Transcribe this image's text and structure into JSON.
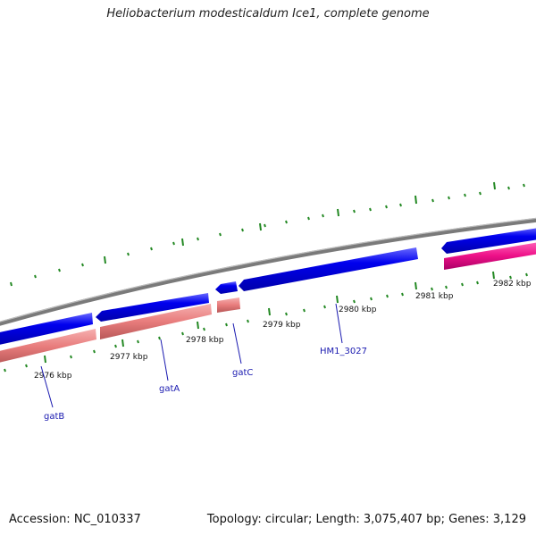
{
  "title": "Heliobacterium modesticaldum Ice1, complete genome",
  "footer": {
    "accession": "Accession: NC_010337",
    "summary": "Topology: circular; Length: 3,075,407 bp; Genes: 3,129"
  },
  "ruler_labels": [
    "2976 kbp",
    "2977 kbp",
    "2978 kbp",
    "2979 kbp",
    "2980 kbp",
    "2981 kbp",
    "2982 kbp"
  ],
  "genes": [
    "gatB",
    "gatA",
    "gatC",
    "HM1_3027"
  ],
  "colors": {
    "cds_forward": "#0000ee",
    "gene_pink": "#e87c7c",
    "gene_magenta": "#ee1188",
    "backbone": "#888888",
    "ticks": "#228822",
    "label_line": "#1a1ab0"
  }
}
